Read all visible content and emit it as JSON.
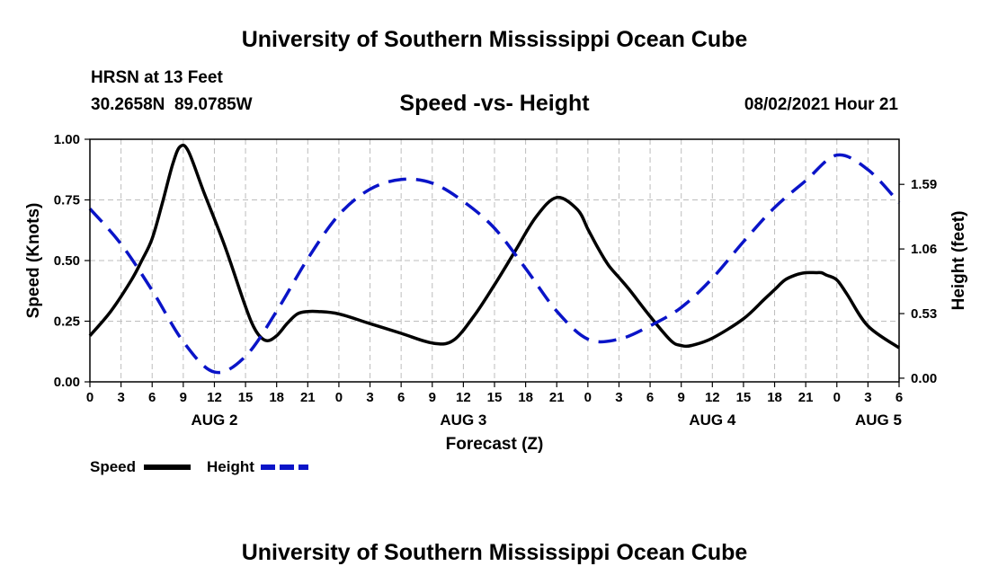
{
  "page_title": "University of Southern Mississippi Ocean Cube",
  "footer_title": "University of Southern Mississippi Ocean Cube",
  "station": {
    "name": "HRSN at 13 Feet",
    "coords": "30.2658N  89.0785W"
  },
  "run_label": "08/02/2021 Hour 21",
  "colors": {
    "speed": "#000000",
    "height": "#0a14c8",
    "grid": "#bdbdbd"
  },
  "chart_data": {
    "type": "line",
    "title": "Speed -vs- Height",
    "xlabel": "Forecast (Z)",
    "ylabel_left": "Speed (Knots)",
    "ylabel_right": "Height (feet)",
    "x_unit": "hours from Aug 2 00Z",
    "xlim": [
      0,
      78
    ],
    "x_ticks": [
      0,
      3,
      6,
      9,
      12,
      15,
      18,
      21,
      24,
      27,
      30,
      33,
      36,
      39,
      42,
      45,
      48,
      51,
      54,
      57,
      60,
      63,
      66,
      69,
      72,
      75,
      78
    ],
    "x_tick_labels": [
      "0",
      "3",
      "6",
      "9",
      "12",
      "15",
      "18",
      "21",
      "0",
      "3",
      "6",
      "9",
      "12",
      "15",
      "18",
      "21",
      "0",
      "3",
      "6",
      "9",
      "12",
      "15",
      "18",
      "21",
      "0",
      "3",
      "6"
    ],
    "day_labels": [
      {
        "x": 12,
        "label": "AUG 2"
      },
      {
        "x": 36,
        "label": "AUG 3"
      },
      {
        "x": 60,
        "label": "AUG 4"
      },
      {
        "x": 76,
        "label": "AUG 5"
      }
    ],
    "ylim_left": [
      0,
      1.0
    ],
    "y_ticks_left": [
      0,
      0.25,
      0.5,
      0.75,
      1.0
    ],
    "y_tick_labels_left": [
      "0.00",
      "0.25",
      "0.50",
      "0.75",
      "1.00"
    ],
    "ylim_right": [
      -0.03,
      1.96
    ],
    "y_ticks_right": [
      0,
      0.53,
      1.06,
      1.59
    ],
    "y_tick_labels_right": [
      "0.00",
      "0.53",
      "1.06",
      "1.59"
    ],
    "grid": true,
    "series": [
      {
        "name": "Speed",
        "axis": "left",
        "style": "solid",
        "x": [
          0,
          2,
          4,
          5,
          6,
          7,
          8,
          8.7,
          9.5,
          11,
          13,
          15,
          16,
          17,
          18,
          19,
          20,
          21,
          22,
          24,
          27,
          30,
          33,
          35,
          37,
          39,
          41,
          43,
          45,
          47,
          48,
          49,
          50,
          51,
          52,
          54,
          56,
          57,
          58,
          60,
          63,
          65,
          66,
          67,
          68,
          69,
          70,
          70.5,
          71,
          72,
          73,
          75,
          78
        ],
        "values": [
          0.19,
          0.29,
          0.42,
          0.5,
          0.59,
          0.74,
          0.9,
          0.97,
          0.95,
          0.78,
          0.56,
          0.31,
          0.21,
          0.17,
          0.19,
          0.24,
          0.28,
          0.29,
          0.29,
          0.28,
          0.24,
          0.2,
          0.16,
          0.17,
          0.27,
          0.4,
          0.54,
          0.68,
          0.76,
          0.71,
          0.63,
          0.55,
          0.48,
          0.43,
          0.38,
          0.27,
          0.17,
          0.15,
          0.15,
          0.18,
          0.26,
          0.34,
          0.38,
          0.42,
          0.44,
          0.45,
          0.45,
          0.45,
          0.44,
          0.42,
          0.36,
          0.23,
          0.14
        ]
      },
      {
        "name": "Height",
        "axis": "right",
        "style": "dashed",
        "x": [
          0,
          3,
          6,
          9,
          12,
          15,
          18,
          21,
          24,
          27,
          30,
          33,
          36,
          39,
          42,
          45,
          48,
          51,
          54,
          57,
          60,
          63,
          66,
          69,
          72,
          75,
          78
        ],
        "values": [
          1.39,
          1.1,
          0.72,
          0.3,
          0.05,
          0.18,
          0.55,
          0.98,
          1.34,
          1.55,
          1.63,
          1.6,
          1.45,
          1.23,
          0.9,
          0.55,
          0.32,
          0.32,
          0.43,
          0.58,
          0.82,
          1.12,
          1.4,
          1.62,
          1.83,
          1.71,
          1.44
        ]
      }
    ],
    "legend": [
      {
        "label": "Speed",
        "style": "solid"
      },
      {
        "label": "Height",
        "style": "dashed"
      }
    ]
  }
}
